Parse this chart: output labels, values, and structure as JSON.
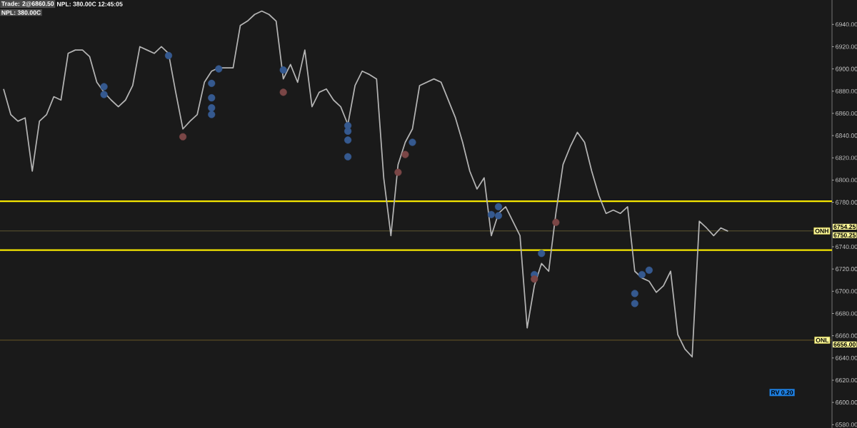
{
  "chart_data": {
    "type": "line",
    "categories": [
      null,
      null,
      null,
      null,
      null,
      null,
      null,
      null,
      null,
      null,
      null,
      null,
      null,
      null,
      null,
      null,
      null,
      null,
      null,
      null,
      null,
      null,
      null,
      null,
      null,
      null,
      null,
      null,
      null,
      null,
      null,
      null,
      null,
      null,
      null,
      null,
      null,
      null,
      null,
      null,
      null,
      null,
      null,
      null,
      null,
      null,
      null,
      null,
      null,
      null,
      null,
      null,
      null,
      null,
      null,
      null,
      null,
      null,
      null,
      null,
      null,
      null,
      null,
      null,
      null,
      null,
      null,
      null,
      null,
      null,
      null,
      null,
      null,
      null,
      null,
      null,
      null,
      null,
      null,
      null,
      null,
      null,
      null,
      null,
      null,
      null,
      null,
      null,
      null,
      null,
      null,
      null,
      null,
      null,
      null,
      null,
      null,
      null,
      null,
      null,
      null,
      null
    ],
    "series": [
      {
        "type": "line",
        "color": "#b4b4b4",
        "marker": "none",
        "line_style": "solid",
        "values": [
          6882,
          6859,
          6853,
          6856,
          6808,
          6853,
          6859,
          6875,
          6872,
          6914,
          6917,
          6917,
          6911,
          6888,
          6879,
          6872,
          6866,
          6872,
          6885,
          6920,
          6917,
          6914,
          6920,
          6914,
          6879,
          6846,
          6853,
          6859,
          6888,
          6898,
          6901,
          6901,
          6901,
          6939,
          6943,
          6949,
          6952,
          6949,
          6943,
          6891,
          6904,
          6888,
          6917,
          6866,
          6879,
          6882,
          6872,
          6866,
          6850,
          6885,
          6898,
          6895,
          6891,
          6802,
          6750,
          6814,
          6834,
          6846,
          6885,
          6888,
          6891,
          6888,
          6872,
          6856,
          6834,
          6808,
          6792,
          6802,
          6750,
          6770,
          6776,
          6763,
          6750,
          6667,
          6705,
          6725,
          6718,
          6770,
          6814,
          6830,
          6843,
          6834,
          6808,
          6786,
          6770,
          6773,
          6770,
          6776,
          6718,
          6712,
          6709,
          6699,
          6705,
          6718,
          6661,
          6648,
          6641,
          6763,
          6757,
          6750,
          6757,
          6754
        ]
      },
      {
        "type": "scatter",
        "color": "#35598f",
        "marker": "circle",
        "values": [
          null,
          null,
          null,
          null,
          null,
          null,
          null,
          null,
          null,
          null,
          null,
          null,
          null,
          null,
          6884,
          null,
          null,
          null,
          null,
          null,
          null,
          null,
          null,
          6912,
          null,
          null,
          null,
          null,
          null,
          6887,
          6900,
          null,
          null,
          null,
          null,
          null,
          null,
          null,
          null,
          6899,
          null,
          null,
          null,
          null,
          null,
          null,
          null,
          null,
          6849,
          null,
          null,
          null,
          null,
          null,
          null,
          null,
          null,
          6834,
          null,
          null,
          null,
          null,
          null,
          null,
          null,
          null,
          null,
          null,
          6769,
          6776,
          null,
          null,
          null,
          null,
          6715,
          6734,
          null,
          null,
          null,
          null,
          null,
          null,
          null,
          null,
          null,
          null,
          null,
          null,
          6698,
          6715,
          6719,
          null,
          null,
          null,
          null,
          null,
          null,
          null,
          null,
          null,
          null,
          null
        ]
      },
      {
        "type": "scatter",
        "color": "#35598f",
        "marker": "circle",
        "values": [
          null,
          null,
          null,
          null,
          null,
          null,
          null,
          null,
          null,
          null,
          null,
          null,
          null,
          null,
          6877,
          null,
          null,
          null,
          null,
          null,
          null,
          null,
          null,
          null,
          null,
          null,
          null,
          null,
          null,
          6874,
          null,
          null,
          null,
          null,
          null,
          null,
          null,
          null,
          null,
          null,
          null,
          null,
          null,
          null,
          null,
          null,
          null,
          null,
          6844,
          null,
          null,
          null,
          null,
          null,
          null,
          null,
          null,
          null,
          null,
          null,
          null,
          null,
          null,
          null,
          null,
          null,
          null,
          null,
          null,
          6768,
          null,
          null,
          null,
          null,
          null,
          null,
          null,
          null,
          null,
          null,
          null,
          null,
          null,
          null,
          null,
          null,
          null,
          null,
          6689,
          null,
          null,
          null,
          null,
          null,
          null,
          null,
          null,
          null,
          null,
          null,
          null,
          null
        ]
      },
      {
        "type": "scatter",
        "color": "#35598f",
        "marker": "circle",
        "values": [
          null,
          null,
          null,
          null,
          null,
          null,
          null,
          null,
          null,
          null,
          null,
          null,
          null,
          null,
          null,
          null,
          null,
          null,
          null,
          null,
          null,
          null,
          null,
          null,
          null,
          null,
          null,
          null,
          null,
          6865,
          null,
          null,
          null,
          null,
          null,
          null,
          null,
          null,
          null,
          null,
          null,
          null,
          null,
          null,
          null,
          null,
          null,
          null,
          6836,
          null,
          null,
          null,
          null,
          null,
          null,
          null,
          null,
          null,
          null,
          null,
          null,
          null,
          null,
          null,
          null,
          null,
          null,
          null,
          null,
          null,
          null,
          null,
          null,
          null,
          null,
          null,
          null,
          null,
          null,
          null,
          null,
          null,
          null,
          null,
          null,
          null,
          null,
          null,
          null,
          null,
          null,
          null,
          null,
          null,
          null,
          null,
          null,
          null,
          null,
          null,
          null,
          null
        ]
      },
      {
        "type": "scatter",
        "color": "#35598f",
        "marker": "circle",
        "values": [
          null,
          null,
          null,
          null,
          null,
          null,
          null,
          null,
          null,
          null,
          null,
          null,
          null,
          null,
          null,
          null,
          null,
          null,
          null,
          null,
          null,
          null,
          null,
          null,
          null,
          null,
          null,
          null,
          null,
          6859,
          null,
          null,
          null,
          null,
          null,
          null,
          null,
          null,
          null,
          null,
          null,
          null,
          null,
          null,
          null,
          null,
          null,
          null,
          6821,
          null,
          null,
          null,
          null,
          null,
          null,
          null,
          null,
          null,
          null,
          null,
          null,
          null,
          null,
          null,
          null,
          null,
          null,
          null,
          null,
          null,
          null,
          null,
          null,
          null,
          null,
          null,
          null,
          null,
          null,
          null,
          null,
          null,
          null,
          null,
          null,
          null,
          null,
          null,
          null,
          null,
          null,
          null,
          null,
          null,
          null,
          null,
          null,
          null,
          null,
          null,
          null,
          null
        ]
      },
      {
        "type": "scatter",
        "color": "#7a4646",
        "marker": "circle",
        "values": [
          null,
          null,
          null,
          null,
          null,
          null,
          null,
          null,
          null,
          null,
          null,
          null,
          null,
          null,
          null,
          null,
          null,
          null,
          null,
          null,
          null,
          null,
          null,
          null,
          null,
          6839,
          null,
          null,
          null,
          null,
          null,
          null,
          null,
          null,
          null,
          null,
          null,
          null,
          null,
          6879,
          null,
          null,
          null,
          null,
          null,
          null,
          null,
          null,
          null,
          null,
          null,
          null,
          null,
          null,
          null,
          6807,
          6823,
          null,
          null,
          null,
          null,
          null,
          null,
          null,
          null,
          null,
          null,
          null,
          null,
          null,
          null,
          null,
          null,
          null,
          6711,
          null,
          null,
          6762,
          null,
          null,
          null,
          null,
          null,
          null,
          null,
          null,
          null,
          null,
          null,
          null,
          null,
          null,
          null,
          null,
          null,
          null,
          null,
          null,
          null,
          null,
          null,
          null
        ]
      }
    ],
    "ylim": [
      6577,
      6962
    ],
    "yticks": [
      {
        "value": 6580,
        "label": "6580.00"
      },
      {
        "value": 6600,
        "label": "6600.00"
      },
      {
        "value": 6620,
        "label": "6620.00"
      },
      {
        "value": 6640,
        "label": "6640.00"
      },
      {
        "value": 6660,
        "label": "6660.00"
      },
      {
        "value": 6680,
        "label": "6680.00"
      },
      {
        "value": 6700,
        "label": "6700.00"
      },
      {
        "value": 6720,
        "label": "6720.00"
      },
      {
        "value": 6740,
        "label": "6740.00"
      },
      {
        "value": 6780,
        "label": "6780.00"
      },
      {
        "value": 6800,
        "label": "6800.00"
      },
      {
        "value": 6820,
        "label": "6820.00"
      },
      {
        "value": 6840,
        "label": "6840.00"
      },
      {
        "value": 6860,
        "label": "6860.00"
      },
      {
        "value": 6880,
        "label": "6880.00"
      },
      {
        "value": 6900,
        "label": "6900.00"
      },
      {
        "value": 6920,
        "label": "6920.00"
      },
      {
        "value": 6940,
        "label": "6940.00"
      }
    ],
    "ref_lines": [
      {
        "axis": "y",
        "value": 6754.25,
        "label": "ONH",
        "color": "#6e6638"
      },
      {
        "axis": "y",
        "value": 6656,
        "label": "ONL",
        "color": "#7d6428"
      },
      {
        "axis": "y",
        "value": 6781,
        "color": "#f5e600"
      },
      {
        "axis": "y",
        "value": 6737,
        "color": "#f5e600"
      }
    ],
    "annotations": [
      "Trade: 2@6860.50",
      "NPL: 380.00C 12:45:05",
      "NPL: 380.00C",
      "RV 0.20",
      "6754.25",
      "6750.25",
      "6656.00"
    ]
  }
}
